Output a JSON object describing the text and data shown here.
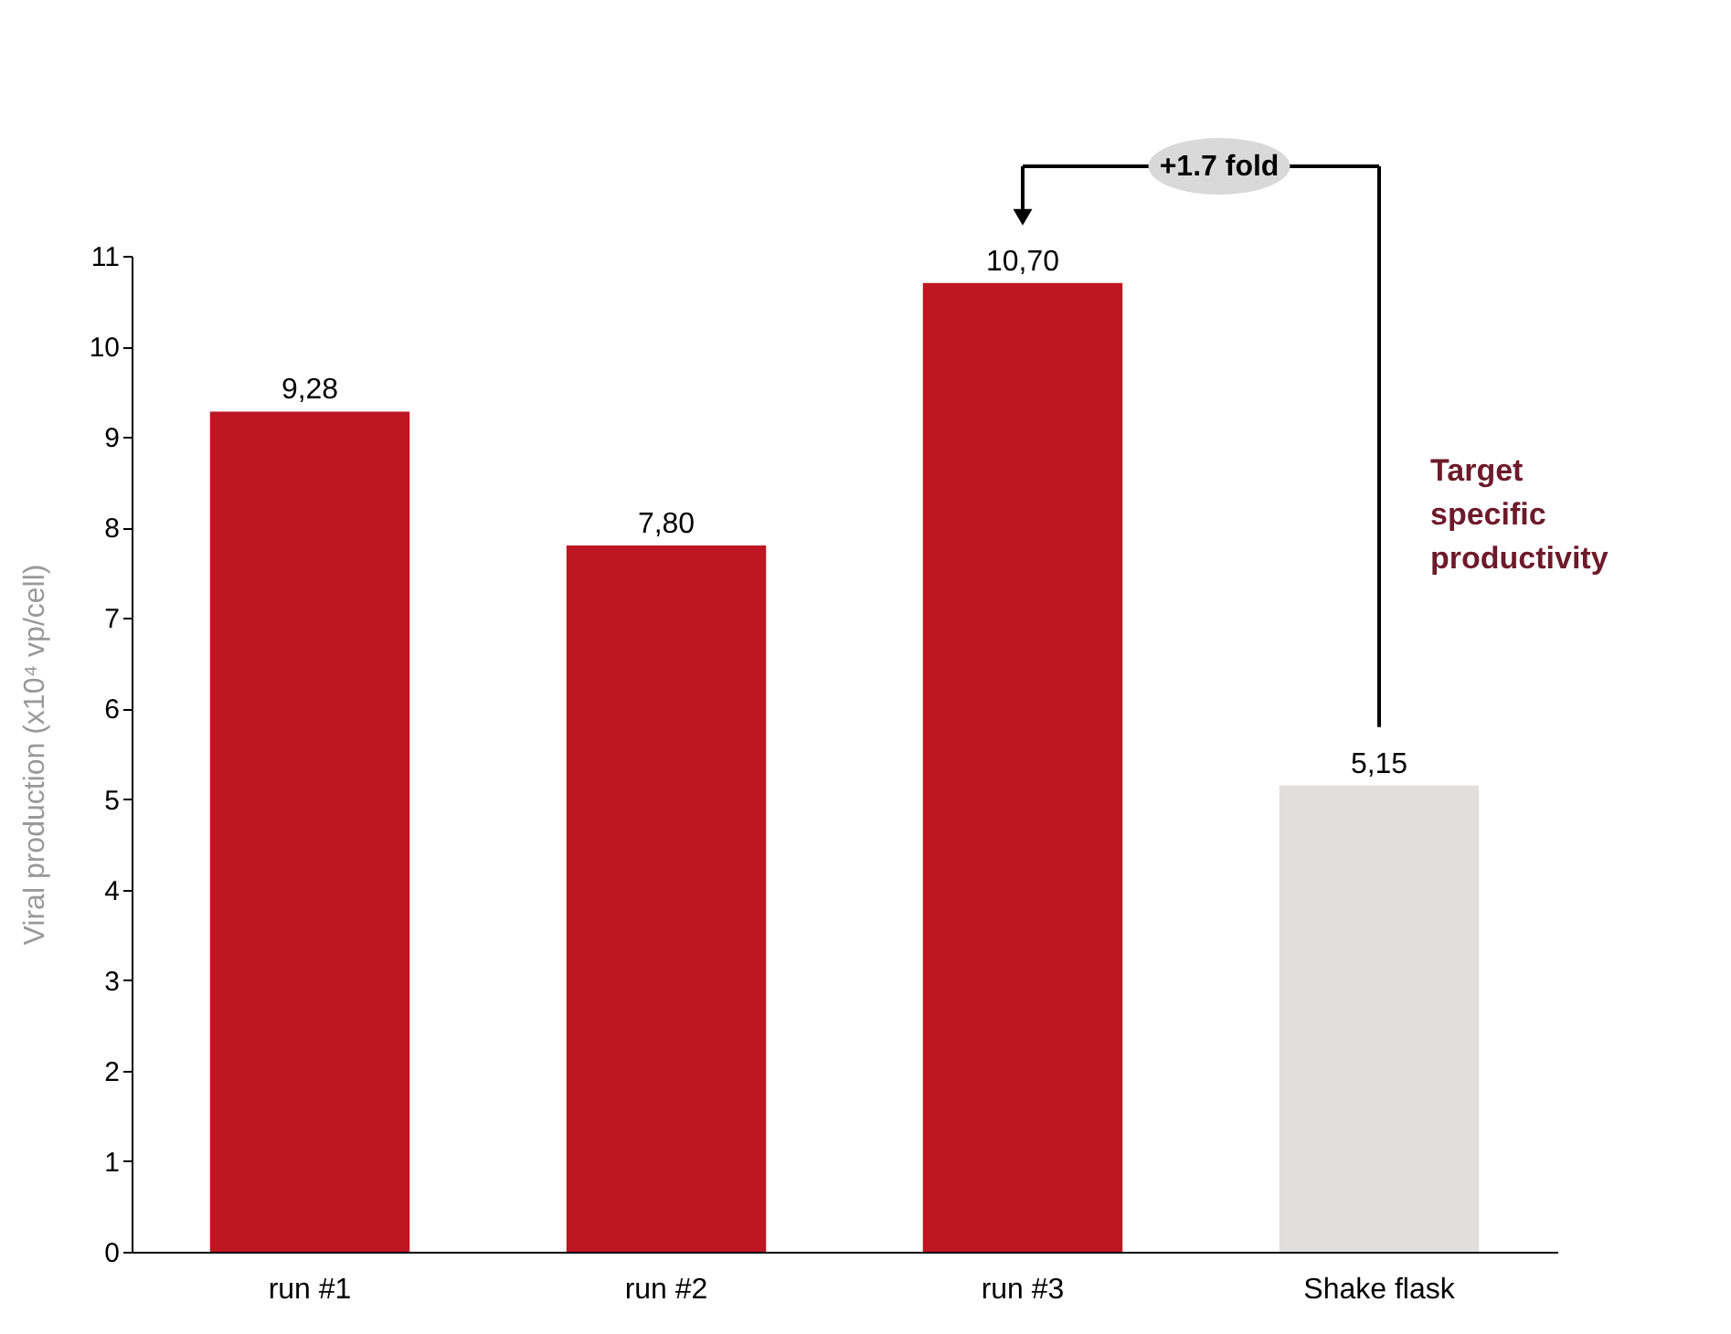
{
  "chart_data": {
    "type": "bar",
    "categories": [
      "run #1",
      "run #2",
      "run #3",
      "Shake flask"
    ],
    "values": [
      9.28,
      7.8,
      10.7,
      5.15
    ],
    "colors": [
      "#be1622",
      "#be1622",
      "#be1622",
      "#e0dfdd"
    ],
    "value_labels": [
      "9,28",
      "7,80",
      "10,70",
      "5,15"
    ],
    "ylabel": "Viral production (x10⁴ vp/cell)",
    "ylim": [
      0,
      11
    ],
    "yticks": [
      0,
      1,
      2,
      3,
      4,
      5,
      6,
      7,
      8,
      9,
      10,
      11
    ],
    "annotations": [
      "+1.7 fold",
      "Target specific productivity"
    ],
    "grid": false
  }
}
